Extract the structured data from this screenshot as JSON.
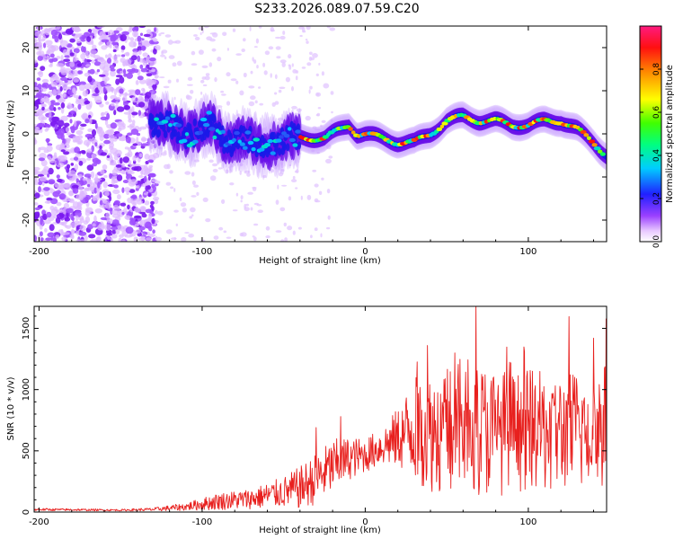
{
  "title": "S233.2026.089.07.59.C20",
  "chart_data": [
    {
      "type": "heatmap",
      "xlabel": "Height of straight line (km)",
      "ylabel": "Frequency (Hz)",
      "xlim": [
        -203,
        148
      ],
      "ylim": [
        -25,
        25
      ],
      "xticks": [
        -200,
        -100,
        0,
        100
      ],
      "yticks": [
        -20,
        -10,
        0,
        10,
        20
      ],
      "colorbar": {
        "label": "Normalized spectral amplitude",
        "range": [
          0,
          1
        ],
        "ticks": [
          "0.0",
          "0.2",
          "0.4",
          "0.6",
          "0.8"
        ],
        "tick_values": [
          0.0,
          0.2,
          0.4,
          0.6,
          0.8
        ]
      },
      "ridge": {
        "description_points_x": [
          -130,
          -110,
          -95,
          -85,
          -75,
          -65,
          -55,
          -45,
          -35,
          -25,
          -15,
          -10,
          -5,
          0,
          10,
          20,
          30,
          40,
          50,
          60,
          70,
          80,
          90,
          100,
          110,
          120,
          130,
          140,
          148
        ],
        "description_points_y": [
          3,
          0,
          2,
          -2,
          -1,
          -3,
          -2,
          -1,
          -1,
          -1,
          1,
          2,
          0,
          0,
          -1,
          -2,
          -2,
          0,
          3,
          4,
          3,
          3,
          2,
          2,
          3,
          3,
          1,
          -2,
          -5
        ]
      }
    },
    {
      "type": "line",
      "xlabel": "Height of straight line (km)",
      "ylabel": "SNR (10 * v/v)",
      "xlim": [
        -203,
        148
      ],
      "ylim": [
        0,
        1680
      ],
      "xticks": [
        -200,
        -100,
        0,
        100
      ],
      "yticks": [
        0,
        500,
        1000,
        1500
      ],
      "color": "#e8201e",
      "envelope": {
        "x": [
          -203,
          -150,
          -130,
          -110,
          -90,
          -70,
          -50,
          -40,
          -30,
          -20,
          -10,
          0,
          10,
          20,
          30,
          40,
          60,
          80,
          100,
          120,
          148
        ],
        "base": [
          20,
          15,
          20,
          40,
          80,
          100,
          150,
          180,
          250,
          350,
          420,
          450,
          520,
          580,
          650,
          600,
          650,
          600,
          620,
          600,
          650
        ],
        "amp": [
          15,
          10,
          20,
          45,
          100,
          120,
          180,
          250,
          300,
          320,
          250,
          200,
          220,
          350,
          600,
          700,
          800,
          750,
          700,
          700,
          750
        ]
      }
    }
  ]
}
